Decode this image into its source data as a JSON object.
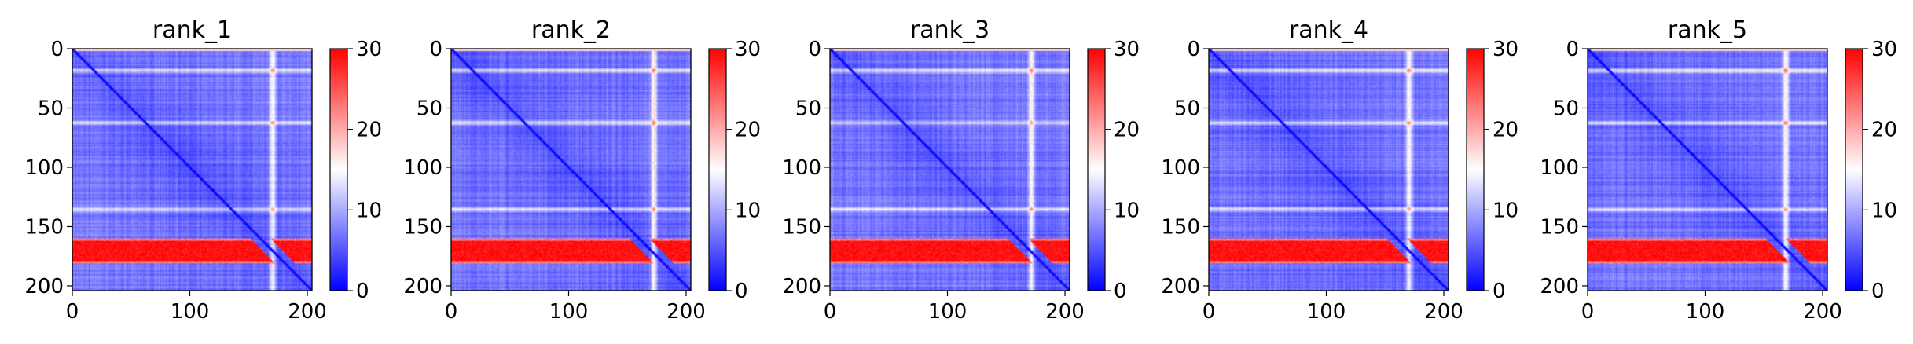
{
  "figure": {
    "background": "#ffffff"
  },
  "colormap": {
    "name": "bwr",
    "low": "#0000ff",
    "mid": "#ffffff",
    "high": "#ff0000"
  },
  "chart_data": [
    {
      "type": "heatmap",
      "title": "rank_1",
      "xlabel": "",
      "ylabel": "",
      "xlim": [
        0,
        204
      ],
      "ylim": [
        204,
        0
      ],
      "xticks": [
        "0",
        "100",
        "200"
      ],
      "yticks": [
        "0",
        "50",
        "100",
        "150",
        "200"
      ],
      "colorbar": {
        "range": [
          0,
          30
        ],
        "ticks": [
          "0",
          "10",
          "20",
          "30"
        ]
      },
      "matrix_size": 204,
      "features": {
        "diagonal_value": 0,
        "background_value": 7,
        "high_band_rows": [
          160,
          180
        ],
        "high_band_value": 29,
        "light_row_stripes": [
          18,
          62,
          135
        ],
        "light_col_stripes": [
          170
        ]
      }
    },
    {
      "type": "heatmap",
      "title": "rank_2",
      "xlabel": "",
      "ylabel": "",
      "xlim": [
        0,
        204
      ],
      "ylim": [
        204,
        0
      ],
      "xticks": [
        "0",
        "100",
        "200"
      ],
      "yticks": [
        "0",
        "50",
        "100",
        "150",
        "200"
      ],
      "colorbar": {
        "range": [
          0,
          30
        ],
        "ticks": [
          "0",
          "10",
          "20",
          "30"
        ]
      },
      "matrix_size": 204,
      "features": {
        "diagonal_value": 0,
        "background_value": 7,
        "high_band_rows": [
          160,
          180
        ],
        "high_band_value": 29,
        "light_row_stripes": [
          18,
          62,
          135
        ],
        "light_col_stripes": [
          172
        ]
      }
    },
    {
      "type": "heatmap",
      "title": "rank_3",
      "xlabel": "",
      "ylabel": "",
      "xlim": [
        0,
        204
      ],
      "ylim": [
        204,
        0
      ],
      "xticks": [
        "0",
        "100",
        "200"
      ],
      "yticks": [
        "0",
        "50",
        "100",
        "150",
        "200"
      ],
      "colorbar": {
        "range": [
          0,
          30
        ],
        "ticks": [
          "0",
          "10",
          "20",
          "30"
        ]
      },
      "matrix_size": 204,
      "features": {
        "diagonal_value": 0,
        "background_value": 7,
        "high_band_rows": [
          160,
          180
        ],
        "high_band_value": 29,
        "light_row_stripes": [
          18,
          62,
          135
        ],
        "light_col_stripes": [
          171
        ]
      }
    },
    {
      "type": "heatmap",
      "title": "rank_4",
      "xlabel": "",
      "ylabel": "",
      "xlim": [
        0,
        204
      ],
      "ylim": [
        204,
        0
      ],
      "xticks": [
        "0",
        "100",
        "200"
      ],
      "yticks": [
        "0",
        "50",
        "100",
        "150",
        "200"
      ],
      "colorbar": {
        "range": [
          0,
          30
        ],
        "ticks": [
          "0",
          "10",
          "20",
          "30"
        ]
      },
      "matrix_size": 204,
      "features": {
        "diagonal_value": 0,
        "background_value": 7,
        "high_band_rows": [
          160,
          180
        ],
        "high_band_value": 29,
        "light_row_stripes": [
          18,
          62,
          135
        ],
        "light_col_stripes": [
          170
        ]
      }
    },
    {
      "type": "heatmap",
      "title": "rank_5",
      "xlabel": "",
      "ylabel": "",
      "xlim": [
        0,
        204
      ],
      "ylim": [
        204,
        0
      ],
      "xticks": [
        "0",
        "100",
        "200"
      ],
      "yticks": [
        "0",
        "50",
        "100",
        "150",
        "200"
      ],
      "colorbar": {
        "range": [
          0,
          30
        ],
        "ticks": [
          "0",
          "10",
          "20",
          "30"
        ]
      },
      "matrix_size": 204,
      "features": {
        "diagonal_value": 0,
        "background_value": 7,
        "high_band_rows": [
          160,
          180
        ],
        "high_band_value": 29,
        "light_row_stripes": [
          18,
          62,
          135
        ],
        "light_col_stripes": [
          168
        ]
      }
    }
  ]
}
